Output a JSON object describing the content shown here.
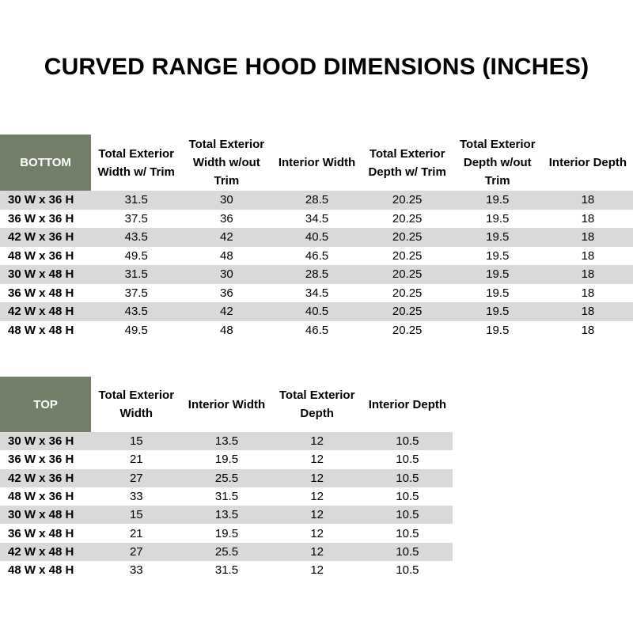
{
  "title": "CURVED RANGE HOOD DIMENSIONS (INCHES)",
  "tables": [
    {
      "corner": "BOTTOM",
      "headers": [
        "Total Exterior Width w/ Trim",
        "Total Exterior Width w/out Trim",
        "Interior Width",
        "Total Exterior Depth w/ Trim",
        "Total Exterior Depth w/out Trim",
        "Interior Depth"
      ],
      "rows": [
        [
          "30 W x 36 H",
          "31.5",
          "30",
          "28.5",
          "20.25",
          "19.5",
          "18"
        ],
        [
          "36 W x 36 H",
          "37.5",
          "36",
          "34.5",
          "20.25",
          "19.5",
          "18"
        ],
        [
          "42 W x 36 H",
          "43.5",
          "42",
          "40.5",
          "20.25",
          "19.5",
          "18"
        ],
        [
          "48 W x 36 H",
          "49.5",
          "48",
          "46.5",
          "20.25",
          "19.5",
          "18"
        ],
        [
          "30 W x 48 H",
          "31.5",
          "30",
          "28.5",
          "20.25",
          "19.5",
          "18"
        ],
        [
          "36 W x 48 H",
          "37.5",
          "36",
          "34.5",
          "20.25",
          "19.5",
          "18"
        ],
        [
          "42 W x 48 H",
          "43.5",
          "42",
          "40.5",
          "20.25",
          "19.5",
          "18"
        ],
        [
          "48 W x 48 H",
          "49.5",
          "48",
          "46.5",
          "20.25",
          "19.5",
          "18"
        ]
      ]
    },
    {
      "corner": "TOP",
      "headers": [
        "Total Exterior Width",
        "Interior Width",
        "Total Exterior Depth",
        "Interior Depth"
      ],
      "rows": [
        [
          "30 W x 36 H",
          "15",
          "13.5",
          "12",
          "10.5"
        ],
        [
          "36 W x 36 H",
          "21",
          "19.5",
          "12",
          "10.5"
        ],
        [
          "42 W x 36 H",
          "27",
          "25.5",
          "12",
          "10.5"
        ],
        [
          "48 W x 36 H",
          "33",
          "31.5",
          "12",
          "10.5"
        ],
        [
          "30 W x 48 H",
          "15",
          "13.5",
          "12",
          "10.5"
        ],
        [
          "36 W x 48 H",
          "21",
          "19.5",
          "12",
          "10.5"
        ],
        [
          "42 W x 48 H",
          "27",
          "25.5",
          "12",
          "10.5"
        ],
        [
          "48 W x 48 H",
          "33",
          "31.5",
          "12",
          "10.5"
        ]
      ]
    }
  ]
}
